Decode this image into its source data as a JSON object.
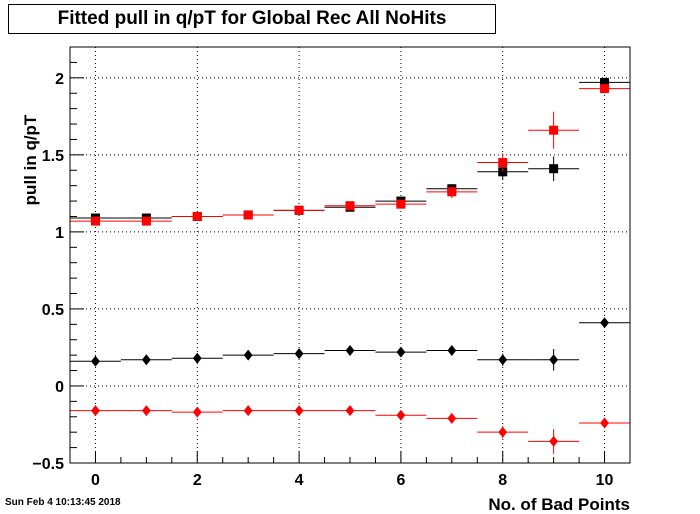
{
  "title": "Fitted pull in q/pT for Global Rec All NoHits",
  "timestamp": "Sun Feb  4 10:13:45 2018",
  "chart_data": {
    "type": "scatter",
    "title": "Fitted pull in q/pT for Global Rec All NoHits",
    "xlabel": "No. of Bad Points",
    "ylabel": "pull in q/pT",
    "xlim": [
      -0.5,
      10.5
    ],
    "ylim": [
      -0.5,
      2.2
    ],
    "grid": true,
    "x_ticks": [
      "0",
      "2",
      "4",
      "6",
      "8",
      "10"
    ],
    "y_ticks": [
      "−0.5",
      "0",
      "0.5",
      "1",
      "1.5",
      "2"
    ],
    "series": [
      {
        "marker": "square",
        "color": "#000000",
        "x": [
          0,
          1,
          2,
          3,
          4,
          5,
          6,
          7,
          8,
          9,
          10
        ],
        "y": [
          1.09,
          1.09,
          1.1,
          1.11,
          1.14,
          1.16,
          1.2,
          1.28,
          1.39,
          1.41,
          1.97
        ],
        "yerr": [
          0.01,
          0.01,
          0.01,
          0.01,
          0.01,
          0.01,
          0.02,
          0.03,
          0.05,
          0.08,
          0.03
        ]
      },
      {
        "marker": "square",
        "color": "#ff0000",
        "x": [
          0,
          1,
          2,
          3,
          4,
          5,
          6,
          7,
          8,
          9,
          10
        ],
        "y": [
          1.07,
          1.07,
          1.1,
          1.11,
          1.14,
          1.17,
          1.18,
          1.26,
          1.45,
          1.66,
          1.93
        ],
        "yerr": [
          0.01,
          0.01,
          0.01,
          0.01,
          0.01,
          0.01,
          0.02,
          0.04,
          0.06,
          0.12,
          0.03
        ]
      },
      {
        "marker": "diamond",
        "color": "#000000",
        "x": [
          0,
          1,
          2,
          3,
          4,
          5,
          6,
          7,
          8,
          9,
          10
        ],
        "y": [
          0.16,
          0.17,
          0.18,
          0.2,
          0.21,
          0.23,
          0.22,
          0.23,
          0.17,
          0.17,
          0.41
        ],
        "yerr": [
          0.01,
          0.01,
          0.01,
          0.01,
          0.01,
          0.01,
          0.02,
          0.03,
          0.04,
          0.07,
          0.01
        ]
      },
      {
        "marker": "diamond",
        "color": "#ff0000",
        "x": [
          0,
          1,
          2,
          3,
          4,
          5,
          6,
          7,
          8,
          9,
          10
        ],
        "y": [
          -0.16,
          -0.16,
          -0.17,
          -0.16,
          -0.16,
          -0.16,
          -0.19,
          -0.21,
          -0.3,
          -0.36,
          -0.24
        ],
        "yerr": [
          0.01,
          0.01,
          0.01,
          0.01,
          0.01,
          0.01,
          0.02,
          0.03,
          0.04,
          0.08,
          0.01
        ]
      }
    ]
  }
}
